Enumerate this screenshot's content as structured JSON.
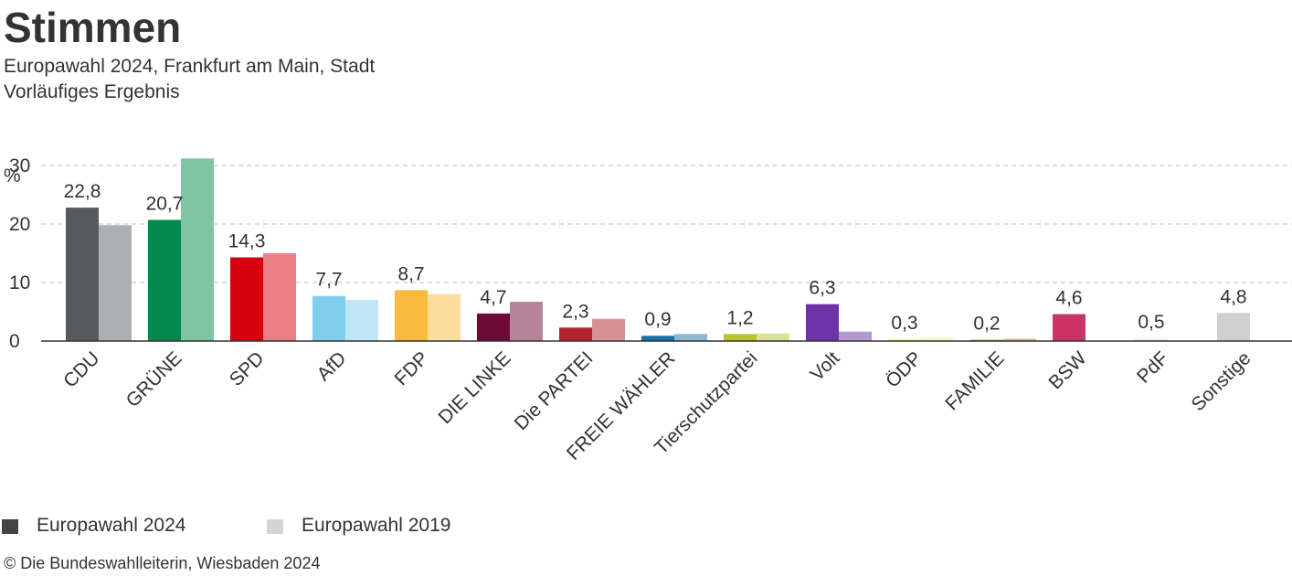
{
  "title": "Stimmen",
  "subtitle_line1": "Europawahl 2024, Frankfurt am Main, Stadt",
  "subtitle_line2": "Vorläufiges Ergebnis",
  "source": "© Die Bundeswahlleiterin, Wiesbaden 2024",
  "legend": [
    {
      "label": "Europawahl 2024",
      "color": "#444444"
    },
    {
      "label": "Europawahl 2019",
      "color": "#d4d4d4"
    }
  ],
  "chart_data": {
    "type": "bar",
    "ylabel": "%",
    "ylim": [
      0,
      30
    ],
    "yticks": [
      0,
      10,
      20,
      30
    ],
    "grid": true,
    "legend_position": "bottom-left",
    "categories": [
      "CDU",
      "GRÜNE",
      "SPD",
      "AfD",
      "FDP",
      "DIE LINKE",
      "Die PARTEI",
      "FREIE WÄHLER",
      "Tierschutzpartei",
      "Volt",
      "ÖDP",
      "FAMILIE",
      "BSW",
      "PdF",
      "Sonstige"
    ],
    "series": [
      {
        "name": "Europawahl 2024",
        "values": [
          22.8,
          20.7,
          14.3,
          7.7,
          8.7,
          4.7,
          2.3,
          0.9,
          1.2,
          6.3,
          0.3,
          0.2,
          4.6,
          0.5,
          4.8
        ],
        "labels": [
          "22,8",
          "20,7",
          "14,3",
          "7,7",
          "8,7",
          "4,7",
          "2,3",
          "0,9",
          "1,2",
          "6,3",
          "0,3",
          "0,2",
          "4,6",
          "0,5",
          "4,8"
        ]
      },
      {
        "name": "Europawahl 2019",
        "values": [
          19.8,
          31.2,
          15.0,
          7.0,
          8.0,
          6.7,
          3.8,
          1.2,
          1.3,
          1.6,
          0.6,
          0.4,
          null,
          null,
          null
        ]
      }
    ],
    "colors_2024": [
      "#555a5c",
      "#008a4b",
      "#d6000f",
      "#80cdec",
      "#f9bb3d",
      "#6c0a35",
      "#b3232c",
      "#1774a8",
      "#b8c62b",
      "#6d31a8",
      "#f3ef8d",
      "#b57437",
      "#c93465",
      "#eeeeee",
      "#d0d0d0"
    ],
    "colors_2019": [
      "#acb0b1",
      "#7fc5a4",
      "#ea7f87",
      "#c0e6f6",
      "#fcdd9e",
      "#b6849a",
      "#d99195",
      "#8bb9d3",
      "#dbe295",
      "#b698d3",
      "#f9f7c6",
      "#dab99b",
      "#e499b2",
      "#f6f6f6",
      "#e8e8e8"
    ]
  }
}
